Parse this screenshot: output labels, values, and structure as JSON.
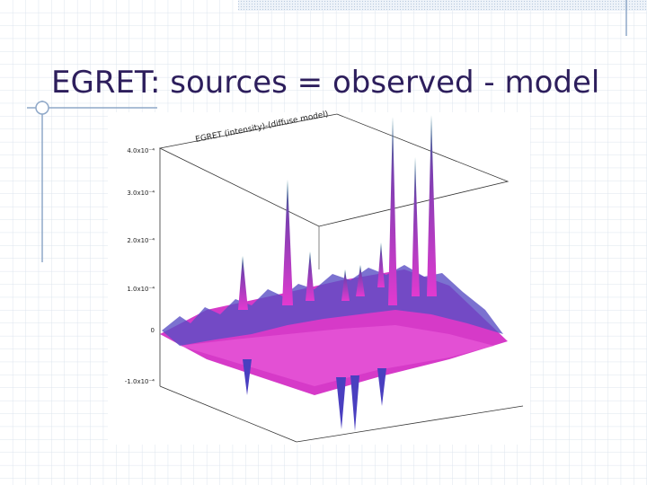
{
  "slide": {
    "title": "EGRET: sources = observed - model",
    "figure": {
      "title": "EGRET (intensity)-(diffuse model)",
      "y_tick_labels": [
        "4.0x10⁻⁴",
        "3.0x10⁻⁴",
        "2.0x10⁻⁴",
        "1.0x10⁻⁴",
        "0",
        "-1.0x10⁻⁴"
      ]
    }
  }
}
